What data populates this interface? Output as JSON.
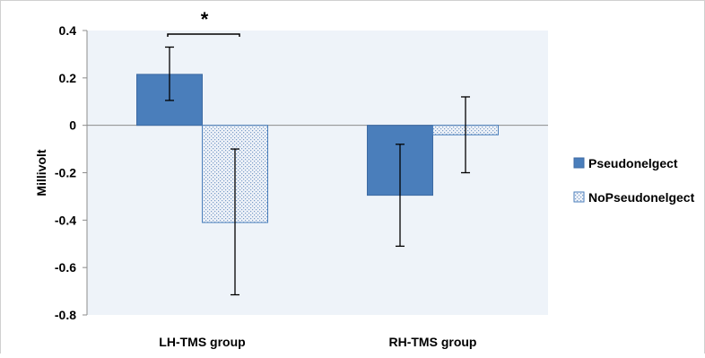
{
  "chart_data": {
    "type": "bar",
    "categories": [
      "LH-TMS group",
      "RH-TMS group"
    ],
    "series": [
      {
        "name": "Pseudonelgect",
        "values": [
          0.215,
          -0.295
        ],
        "error_low": [
          0.105,
          -0.51
        ],
        "error_high": [
          0.33,
          -0.08
        ],
        "color": "#4a7ebb",
        "pattern": "solid"
      },
      {
        "name": "NoPseudonelgect",
        "values": [
          -0.41,
          -0.04
        ],
        "error_low": [
          -0.715,
          -0.2
        ],
        "error_high": [
          -0.1,
          0.12
        ],
        "color": "#4a7ebb",
        "pattern": "dotted"
      }
    ],
    "title": "",
    "xlabel": "",
    "ylabel": "Millivolt",
    "ylim": [
      -0.8,
      0.4
    ],
    "yticks": [
      "0.4",
      "0.2",
      "0",
      "-0.2",
      "-0.4",
      "-0.6",
      "-0.8"
    ],
    "ytick_values": [
      0.4,
      0.2,
      0,
      -0.2,
      -0.4,
      -0.6,
      -0.8
    ],
    "grid": false,
    "plot_background": "#eef3f9",
    "legend_position": "right",
    "annotations": [
      {
        "text": "*",
        "type": "significance-bracket",
        "category": "LH-TMS group"
      }
    ]
  }
}
